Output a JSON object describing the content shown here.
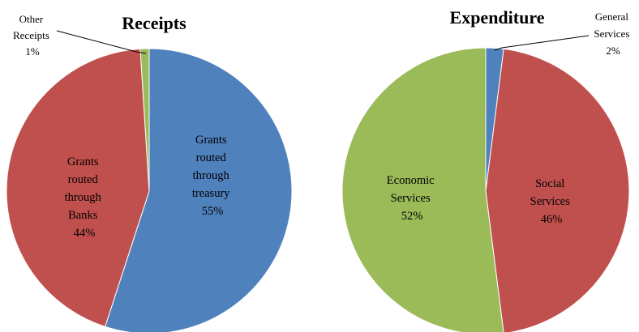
{
  "chart_data": [
    {
      "type": "pie",
      "title": "Receipts",
      "slices": [
        {
          "label": "Grants routed through treasury",
          "lines": [
            "Grants",
            "routed",
            "through",
            "treasury",
            "55%"
          ],
          "value": 55,
          "color": "#4F81BD"
        },
        {
          "label": "Grants routed through Banks",
          "lines": [
            "Grants",
            "routed",
            "through",
            "Banks",
            "44%"
          ],
          "value": 44,
          "color": "#C0504D"
        },
        {
          "label": "Other Receipts",
          "lines": [
            "Other",
            "Receipts",
            "1%"
          ],
          "value": 1,
          "color": "#9BBB59"
        }
      ]
    },
    {
      "type": "pie",
      "title": "Expenditure",
      "slices": [
        {
          "label": "General Services",
          "lines": [
            "General",
            "Services",
            "2%"
          ],
          "value": 2,
          "color": "#4F81BD"
        },
        {
          "label": "Social Services",
          "lines": [
            "Social",
            "Services",
            "46%"
          ],
          "value": 46,
          "color": "#C0504D"
        },
        {
          "label": "Economic Services",
          "lines": [
            "Economic",
            "Services",
            "52%"
          ],
          "value": 52,
          "color": "#9BBB59"
        }
      ]
    }
  ]
}
